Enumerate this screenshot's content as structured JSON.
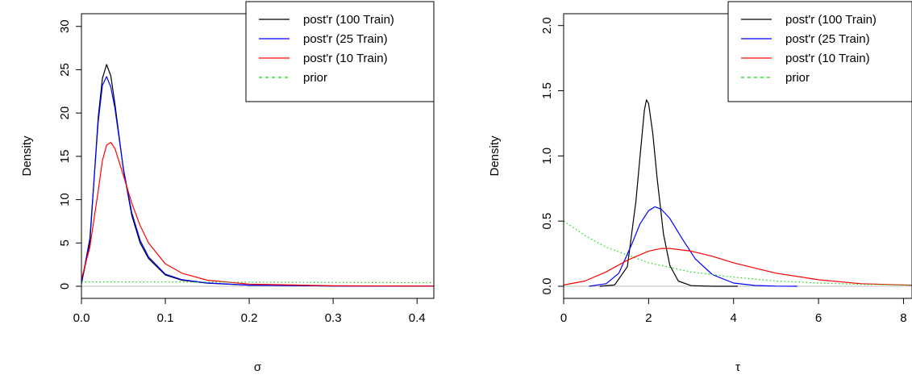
{
  "chart_data": [
    {
      "type": "line",
      "xlabel": "σ",
      "ylabel": "Density",
      "xlim": [
        0.0,
        0.42
      ],
      "ylim": [
        0,
        31
      ],
      "xticks": [
        0.0,
        0.1,
        0.2,
        0.3,
        0.4
      ],
      "xtick_labels": [
        "0.0",
        "0.1",
        "0.2",
        "0.3",
        "0.4"
      ],
      "yticks": [
        0,
        5,
        10,
        15,
        20,
        25,
        30
      ],
      "ytick_labels": [
        "0",
        "5",
        "10",
        "15",
        "20",
        "25",
        "30"
      ],
      "grid": false,
      "legend_position": "top-right",
      "series": [
        {
          "name": "post'r (100 Train)",
          "color": "#000000",
          "dash": "solid",
          "x": [
            0.0,
            0.01,
            0.02,
            0.025,
            0.03,
            0.035,
            0.04,
            0.05,
            0.06,
            0.07,
            0.08,
            0.1,
            0.12,
            0.15,
            0.2,
            0.3,
            0.42
          ],
          "y": [
            0.3,
            5.0,
            19.5,
            24.0,
            25.6,
            24.3,
            21.0,
            13.5,
            8.2,
            5.0,
            3.2,
            1.3,
            0.7,
            0.35,
            0.12,
            0.04,
            0.01
          ]
        },
        {
          "name": "post'r (25 Train)",
          "color": "#0000ff",
          "dash": "solid",
          "x": [
            0.0,
            0.01,
            0.02,
            0.025,
            0.03,
            0.035,
            0.04,
            0.05,
            0.06,
            0.07,
            0.08,
            0.1,
            0.12,
            0.15,
            0.2,
            0.3,
            0.42
          ],
          "y": [
            0.3,
            5.5,
            19.0,
            23.2,
            24.2,
            23.0,
            20.5,
            13.6,
            8.5,
            5.3,
            3.4,
            1.4,
            0.75,
            0.38,
            0.13,
            0.04,
            0.01
          ]
        },
        {
          "name": "post'r (10 Train)",
          "color": "#ff0000",
          "dash": "solid",
          "x": [
            0.0,
            0.01,
            0.02,
            0.025,
            0.03,
            0.035,
            0.04,
            0.05,
            0.06,
            0.07,
            0.08,
            0.1,
            0.12,
            0.15,
            0.2,
            0.3,
            0.42
          ],
          "y": [
            0.8,
            4.5,
            11.0,
            14.5,
            16.3,
            16.6,
            15.9,
            12.8,
            9.6,
            7.0,
            5.0,
            2.6,
            1.5,
            0.7,
            0.25,
            0.06,
            0.02
          ]
        },
        {
          "name": "prior",
          "color": "#00dd00",
          "dash": "dotted",
          "x": [
            0.0,
            0.1,
            0.2,
            0.3,
            0.42
          ],
          "y": [
            0.5,
            0.49,
            0.47,
            0.44,
            0.42
          ]
        }
      ]
    },
    {
      "type": "line",
      "xlabel": "τ",
      "ylabel": "Density",
      "xlim": [
        0,
        8.2
      ],
      "ylim": [
        0,
        2.06
      ],
      "xticks": [
        0,
        2,
        4,
        6,
        8
      ],
      "xtick_labels": [
        "0",
        "2",
        "4",
        "6",
        "8"
      ],
      "yticks": [
        0.0,
        0.5,
        1.0,
        1.5,
        2.0
      ],
      "ytick_labels": [
        "0.0",
        "0.5",
        "1.0",
        "1.5",
        "2.0"
      ],
      "grid": false,
      "legend_position": "top-right",
      "series": [
        {
          "name": "post'r (100 Train)",
          "color": "#000000",
          "dash": "solid",
          "x": [
            0.85,
            1.2,
            1.5,
            1.7,
            1.8,
            1.9,
            1.95,
            2.0,
            2.1,
            2.2,
            2.35,
            2.5,
            2.7,
            3.0,
            3.5,
            4.1
          ],
          "y": [
            0.0,
            0.01,
            0.15,
            0.65,
            1.0,
            1.35,
            1.43,
            1.4,
            1.17,
            0.83,
            0.4,
            0.16,
            0.04,
            0.005,
            0.0,
            0.0
          ]
        },
        {
          "name": "post'r (25 Train)",
          "color": "#0000ff",
          "dash": "solid",
          "x": [
            0.6,
            1.0,
            1.3,
            1.6,
            1.8,
            2.0,
            2.15,
            2.3,
            2.5,
            2.8,
            3.1,
            3.5,
            4.0,
            4.5,
            5.0,
            5.5
          ],
          "y": [
            0.0,
            0.02,
            0.1,
            0.32,
            0.48,
            0.58,
            0.61,
            0.59,
            0.52,
            0.36,
            0.21,
            0.09,
            0.025,
            0.006,
            0.001,
            0.0
          ]
        },
        {
          "name": "post'r (10 Train)",
          "color": "#ff0000",
          "dash": "solid",
          "x": [
            0.0,
            0.5,
            1.0,
            1.5,
            2.0,
            2.3,
            2.5,
            3.0,
            3.5,
            4.0,
            5.0,
            6.0,
            7.0,
            8.2
          ],
          "y": [
            0.01,
            0.04,
            0.11,
            0.2,
            0.27,
            0.29,
            0.29,
            0.27,
            0.23,
            0.18,
            0.1,
            0.05,
            0.02,
            0.008
          ]
        },
        {
          "name": "prior",
          "color": "#00dd00",
          "dash": "dotted",
          "x": [
            0.0,
            0.5,
            1.0,
            1.5,
            2.0,
            2.5,
            3.0,
            4.0,
            5.0,
            6.0,
            7.0,
            8.2
          ],
          "y": [
            0.5,
            0.39,
            0.3,
            0.24,
            0.18,
            0.145,
            0.11,
            0.07,
            0.04,
            0.025,
            0.015,
            0.008
          ]
        }
      ]
    }
  ]
}
